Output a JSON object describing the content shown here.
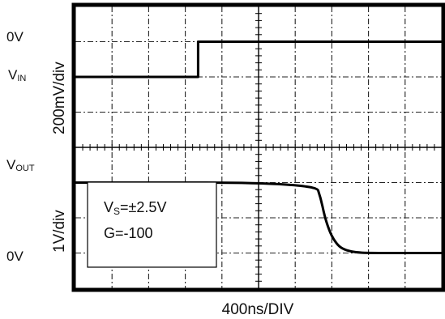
{
  "chart_data": {
    "type": "line",
    "x_units": "ns",
    "xlabel": "400ns/DIV",
    "x_divisions": 10,
    "y_divisions": 8,
    "top_panel": {
      "ylabel": "200mV/div",
      "marker_0v": "0V",
      "trace_label": {
        "main": "V",
        "sub": "IN"
      },
      "series": {
        "name": "VIN",
        "x": [
          0,
          1340,
          1340,
          4000
        ],
        "y_divisions": [
          -1,
          -1,
          0,
          0
        ]
      }
    },
    "bottom_panel": {
      "ylabel": "1V/div",
      "marker_0v": "0V",
      "trace_label": {
        "main": "V",
        "sub": "OUT"
      },
      "series": {
        "name": "VOUT",
        "x": [
          0,
          2620,
          2680,
          2720,
          2770,
          2820,
          2880,
          2960,
          3060,
          3200,
          4000
        ],
        "y_divisions": [
          2,
          2,
          1.55,
          1.05,
          0.65,
          0.38,
          0.18,
          0.07,
          0.02,
          0,
          0
        ]
      }
    },
    "annotation": {
      "line1_main": "V",
      "line1_sub": "S",
      "line1_rest": "=±2.5V",
      "line2": "G=-100"
    },
    "grid": true
  },
  "colors": {
    "trace": "#000000",
    "grid": "#222222",
    "background": "#ffffff"
  }
}
